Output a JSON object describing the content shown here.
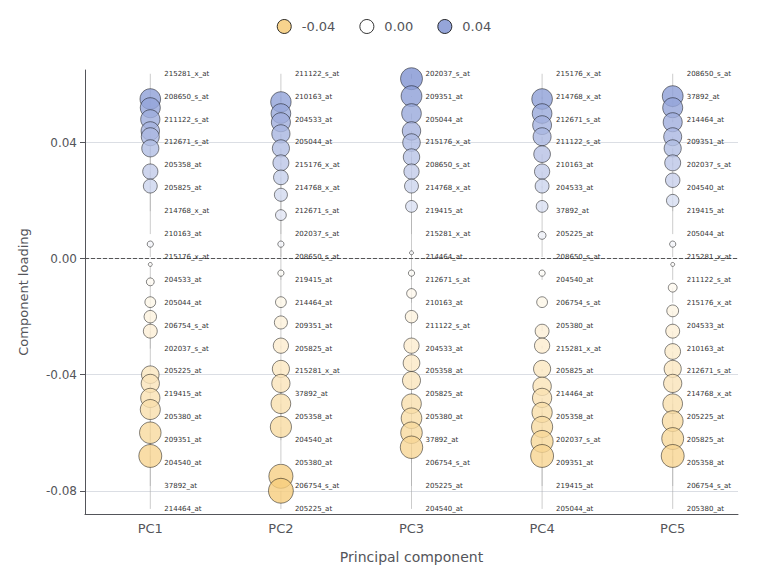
{
  "chart_data": {
    "type": "scatter",
    "categories": [
      "PC1",
      "PC2",
      "PC3",
      "PC4",
      "PC5"
    ],
    "xlabel": "Principal component",
    "ylabel": "Component loading",
    "ylim": [
      -0.088,
      0.065
    ],
    "yticks": [
      -0.08,
      -0.04,
      {
        "value": 0,
        "label": "0.00"
      },
      0.04
    ],
    "grid": true,
    "legend": "top",
    "legend_items": [
      {
        "value": -0.04,
        "label": "-0.04",
        "color": "#F5C870"
      },
      {
        "value": 0,
        "label": "0.00",
        "color": "#ffffff"
      },
      {
        "value": 0.04,
        "label": "0.04",
        "color": "#7B8FD0"
      }
    ],
    "labels": [
      [
        "215281_x_at",
        "208650_s_at",
        "211122_s_at",
        "212671_s_at",
        "205358_at",
        "205825_at",
        "214768_x_at",
        "210163_at",
        "215176_x_at",
        "204533_at",
        "205044_at",
        "206754_s_at",
        "202037_s_at",
        "205225_at",
        "219415_at",
        "205380_at",
        "209351_at",
        "204540_at",
        "37892_at",
        "214464_at"
      ],
      [
        "211122_s_at",
        "210163_at",
        "204533_at",
        "205044_at",
        "215176_x_at",
        "214768_x_at",
        "212671_s_at",
        "202037_s_at",
        "208650_s_at",
        "219415_at",
        "214464_at",
        "209351_at",
        "205825_at",
        "215281_x_at",
        "37892_at",
        "205358_at",
        "204540_at",
        "205380_at",
        "206754_s_at",
        "205225_at"
      ],
      [
        "202037_s_at",
        "209351_at",
        "205044_at",
        "215176_x_at",
        "208650_s_at",
        "214768_x_at",
        "219415_at",
        "215281_x_at",
        "214464_at",
        "212671_s_at",
        "210163_at",
        "211122_s_at",
        "204533_at",
        "205358_at",
        "205825_at",
        "205380_at",
        "37892_at",
        "206754_s_at",
        "205225_at",
        "204540_at"
      ],
      [
        "215176_x_at",
        "214768_x_at",
        "212671_s_at",
        "211122_s_at",
        "210163_at",
        "204533_at",
        "37892_at",
        "205225_at",
        "208650_s_at",
        "204540_at",
        "206754_s_at",
        "205380_at",
        "215281_x_at",
        "205825_at",
        "214464_at",
        "205358_at",
        "202037_s_at",
        "209351_at",
        "219415_at",
        "205044_at"
      ],
      [
        "208650_s_at",
        "37892_at",
        "214464_at",
        "209351_at",
        "202037_s_at",
        "204540_at",
        "219415_at",
        "205044_at",
        "215281_x_at",
        "211122_s_at",
        "215176_x_at",
        "204533_at",
        "210163_at",
        "212671_s_at",
        "214768_x_at",
        "205225_at",
        "205825_at",
        "205358_at",
        "206754_s_at",
        "205380_at"
      ]
    ],
    "values": [
      [
        0.055,
        0.052,
        0.048,
        0.044,
        0.042,
        0.038,
        0.03,
        0.025,
        0.005,
        -0.002,
        -0.008,
        -0.015,
        -0.02,
        -0.025,
        -0.04,
        -0.043,
        -0.048,
        -0.052,
        -0.06,
        -0.068
      ],
      [
        0.054,
        0.05,
        0.047,
        0.043,
        0.038,
        0.033,
        0.028,
        0.022,
        0.015,
        0.005,
        -0.005,
        -0.015,
        -0.022,
        -0.03,
        -0.038,
        -0.043,
        -0.05,
        -0.058,
        -0.075,
        -0.08
      ],
      [
        0.062,
        0.056,
        0.05,
        0.044,
        0.04,
        0.035,
        0.03,
        0.025,
        0.018,
        0.002,
        -0.005,
        -0.012,
        -0.02,
        -0.03,
        -0.036,
        -0.042,
        -0.05,
        -0.055,
        -0.06,
        -0.065
      ],
      [
        0.055,
        0.05,
        0.046,
        0.042,
        0.036,
        0.03,
        0.025,
        0.018,
        0.008,
        -0.005,
        -0.015,
        -0.025,
        -0.03,
        -0.038,
        -0.044,
        -0.048,
        -0.053,
        -0.058,
        -0.063,
        -0.068
      ],
      [
        0.056,
        0.052,
        0.047,
        0.042,
        0.038,
        0.033,
        0.027,
        0.02,
        0.005,
        -0.002,
        -0.01,
        -0.018,
        -0.025,
        -0.032,
        -0.038,
        -0.043,
        -0.05,
        -0.056,
        -0.062,
        -0.068
      ]
    ]
  }
}
